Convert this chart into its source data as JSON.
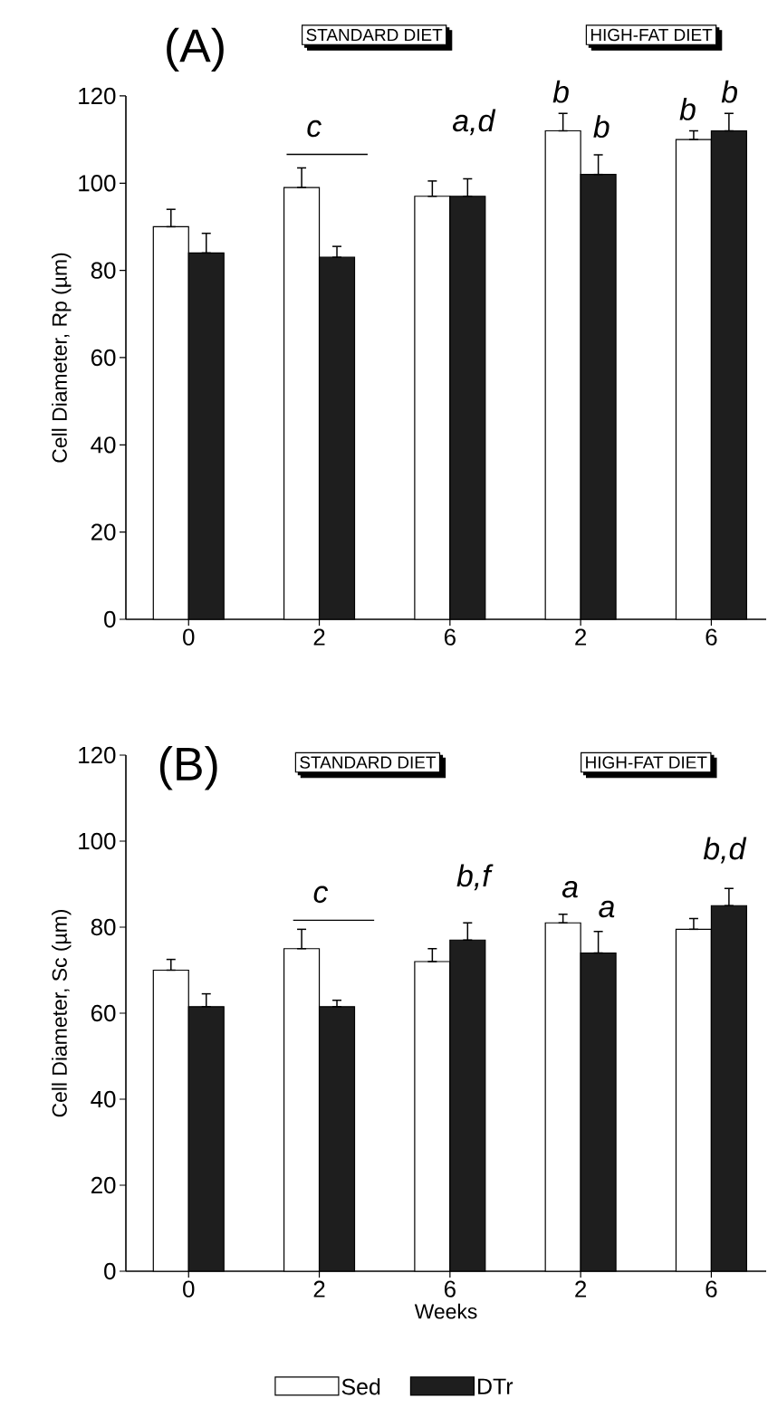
{
  "chart_data": [
    {
      "type": "bar",
      "categories": [
        "0",
        "2",
        "6",
        "2",
        "6"
      ],
      "ylabel": "Cell Diameter, Rp (µm)",
      "ylim": [
        0,
        120
      ],
      "yticks": [
        0,
        20,
        40,
        60,
        80,
        100,
        120
      ],
      "series": [
        {
          "color": "#ffffff",
          "values": [
            90,
            99,
            97,
            112,
            110
          ],
          "errors": [
            [
              90,
              94
            ],
            [
              99,
              103.5
            ],
            [
              97,
              100.5
            ],
            [
              112,
              116
            ],
            [
              110,
              112
            ]
          ]
        },
        {
          "color": "#1e1e1e",
          "values": [
            84,
            83,
            97,
            102,
            112
          ],
          "errors": [
            [
              84,
              88.5
            ],
            [
              83,
              85.5
            ],
            [
              97,
              101
            ],
            [
              102,
              106.5
            ],
            [
              112,
              116
            ]
          ]
        }
      ],
      "annotations": [
        "(A)",
        "STANDARD DIET",
        "HIGH-FAT DIET",
        "c",
        "a,d",
        "b",
        "b",
        "b",
        "b"
      ]
    },
    {
      "type": "bar",
      "categories": [
        "0",
        "2",
        "6",
        "2",
        "6"
      ],
      "xlabel": "Weeks",
      "ylabel": "Cell Diameter, Sc (µm)",
      "ylim": [
        0,
        120
      ],
      "yticks": [
        0,
        20,
        40,
        60,
        80,
        100,
        120
      ],
      "legend": "bottom",
      "series": [
        {
          "name": "Sed",
          "color": "#ffffff",
          "values": [
            70,
            75,
            72,
            81,
            79.5
          ],
          "errors": [
            [
              70,
              72.5
            ],
            [
              75,
              79.5
            ],
            [
              72,
              75
            ],
            [
              81,
              83
            ],
            [
              79.5,
              82
            ]
          ]
        },
        {
          "name": "DTr",
          "color": "#1e1e1e",
          "values": [
            61.5,
            61.5,
            77,
            74,
            85
          ],
          "errors": [
            [
              61.5,
              64.5
            ],
            [
              61.5,
              63
            ],
            [
              77,
              81
            ],
            [
              74,
              79
            ],
            [
              85,
              89
            ]
          ]
        }
      ],
      "annotations": [
        "(B)",
        "STANDARD DIET",
        "HIGH-FAT DIET",
        "c",
        "b,f",
        "a",
        "a",
        "b,d"
      ]
    }
  ]
}
